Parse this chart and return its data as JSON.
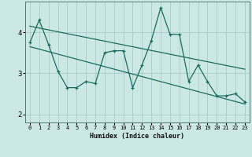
{
  "xlabel": "Humidex (Indice chaleur)",
  "ylabel": "",
  "bg_color": "#cce8e4",
  "grid_color": "#aacccc",
  "line_color": "#1a6b60",
  "xlim": [
    -0.5,
    23.5
  ],
  "ylim": [
    1.8,
    4.75
  ],
  "xticks": [
    0,
    1,
    2,
    3,
    4,
    5,
    6,
    7,
    8,
    9,
    10,
    11,
    12,
    13,
    14,
    15,
    16,
    17,
    18,
    19,
    20,
    21,
    22,
    23
  ],
  "yticks": [
    2,
    3,
    4
  ],
  "data_x": [
    0,
    1,
    2,
    3,
    4,
    5,
    6,
    7,
    8,
    9,
    10,
    11,
    12,
    13,
    14,
    15,
    16,
    17,
    18,
    19,
    20,
    21,
    22,
    23
  ],
  "data_y": [
    3.75,
    4.3,
    3.7,
    3.05,
    2.65,
    2.65,
    2.8,
    2.75,
    3.5,
    3.55,
    3.55,
    2.65,
    3.2,
    3.8,
    4.6,
    3.95,
    3.95,
    2.8,
    3.2,
    2.8,
    2.45,
    2.45,
    2.5,
    2.3
  ],
  "trend1_x": [
    0,
    23
  ],
  "trend1_y": [
    4.15,
    3.1
  ],
  "trend2_x": [
    0,
    23
  ],
  "trend2_y": [
    3.65,
    2.25
  ]
}
